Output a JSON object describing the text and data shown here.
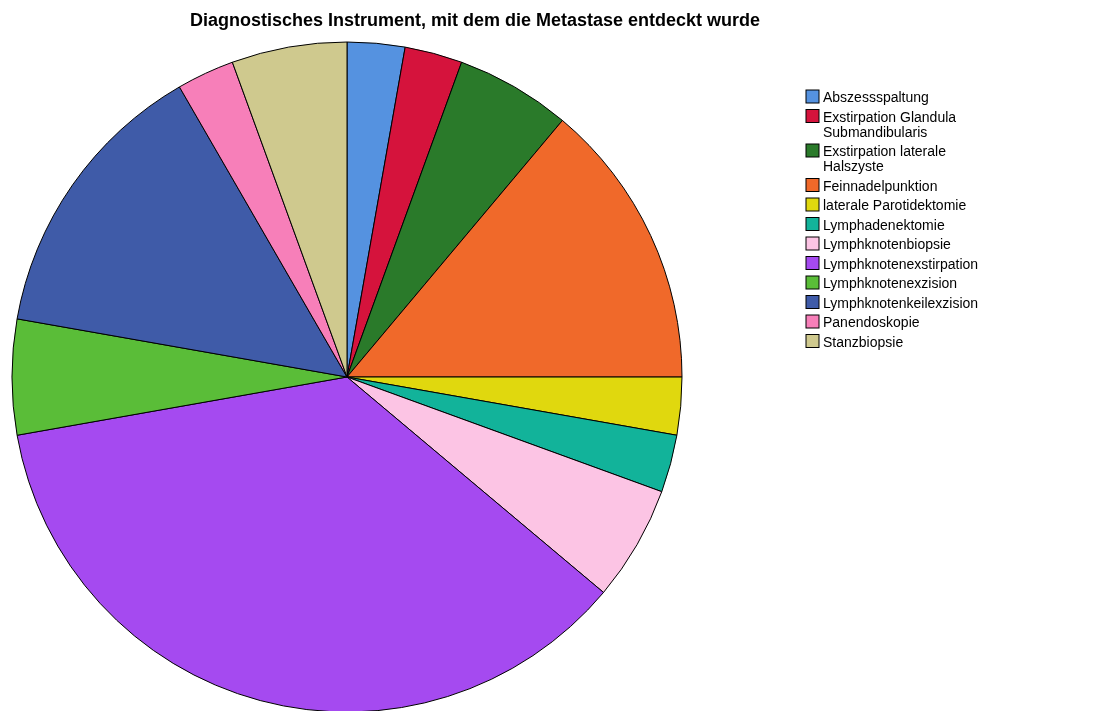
{
  "chart_data": {
    "type": "pie",
    "title": "Diagnostisches Instrument, mit dem die Metastase entdeckt wurde",
    "categories": [
      "Abszessspaltung",
      "Exstirpation Glandula Submandibularis",
      "Exstirpation laterale Halszyste",
      "Feinnadelpunktion",
      "laterale Parotidektomie",
      "Lymphadenektomie",
      "Lymphknotenbiopsie",
      "Lymphknotenexstirpation",
      "Lymphknotenexzision",
      "Lymphknotenkeilexzision",
      "Panendoskopie",
      "Stanzbiopsie"
    ],
    "values": [
      2.78,
      2.78,
      5.56,
      13.89,
      2.78,
      2.78,
      5.56,
      36.11,
      5.56,
      13.89,
      2.78,
      5.56
    ],
    "colors": [
      "#5592e0",
      "#d5133c",
      "#2a7a2a",
      "#f0692a",
      "#e0d80e",
      "#12b39a",
      "#fcc4e4",
      "#a54af0",
      "#5abd38",
      "#3f5ba8",
      "#f77fb9",
      "#cfc98e"
    ],
    "legend": "top right"
  }
}
